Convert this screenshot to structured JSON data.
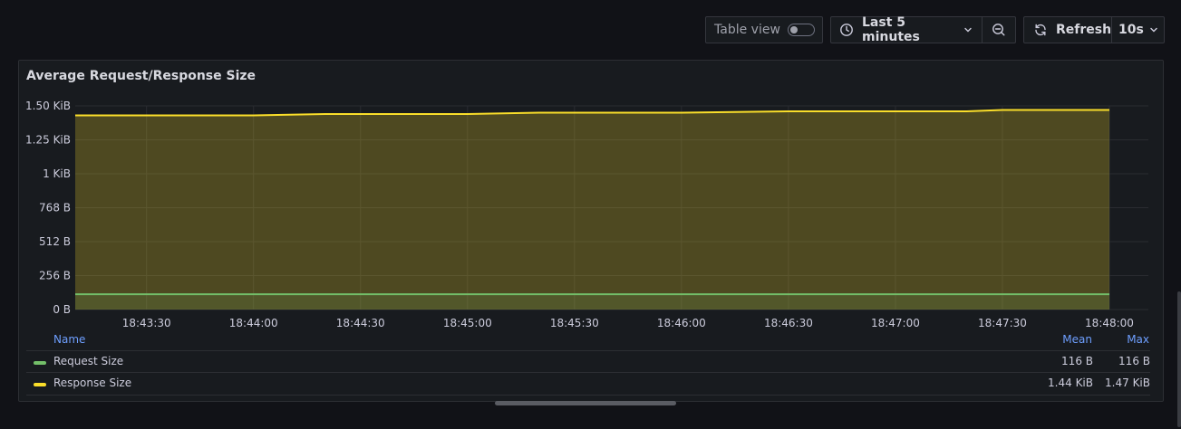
{
  "toolbar": {
    "table_view_label": "Table view",
    "time_range_label": "Last 5 minutes",
    "refresh_label": "Refresh",
    "refresh_interval": "10s"
  },
  "panel": {
    "title": "Average Request/Response Size"
  },
  "chart_data": {
    "type": "area",
    "title": "Average Request/Response Size",
    "xlabel": "",
    "ylabel": "",
    "x_ticks": [
      "18:43:30",
      "18:44:00",
      "18:44:30",
      "18:45:00",
      "18:45:30",
      "18:46:00",
      "18:46:30",
      "18:47:00",
      "18:47:30",
      "18:48:00"
    ],
    "y_ticks": [
      "0 B",
      "256 B",
      "512 B",
      "768 B",
      "1 KiB",
      "1.25 KiB",
      "1.50 KiB"
    ],
    "ylim": [
      0,
      1.5
    ],
    "y_unit": "KiB",
    "grid": true,
    "x": [
      "18:43:10",
      "18:43:30",
      "18:44:00",
      "18:44:20",
      "18:44:30",
      "18:45:00",
      "18:45:20",
      "18:45:30",
      "18:46:00",
      "18:46:30",
      "18:47:00",
      "18:47:20",
      "18:47:30",
      "18:48:00"
    ],
    "series": [
      {
        "name": "Request Size",
        "color": "#73bf69",
        "values": [
          0.113,
          0.113,
          0.113,
          0.113,
          0.113,
          0.113,
          0.113,
          0.113,
          0.113,
          0.113,
          0.113,
          0.113,
          0.113,
          0.113
        ]
      },
      {
        "name": "Response Size",
        "color": "#fade2a",
        "values": [
          1.43,
          1.43,
          1.43,
          1.44,
          1.44,
          1.44,
          1.45,
          1.45,
          1.45,
          1.46,
          1.46,
          1.46,
          1.47,
          1.47
        ]
      }
    ]
  },
  "legend": {
    "headers": {
      "name": "Name",
      "mean": "Mean",
      "max": "Max"
    },
    "rows": [
      {
        "name": "Request Size",
        "color": "#73bf69",
        "mean": "116 B",
        "max": "116 B"
      },
      {
        "name": "Response Size",
        "color": "#fade2a",
        "mean": "1.44 KiB",
        "max": "1.47 KiB"
      }
    ]
  },
  "icons": {
    "clock": "clock-icon",
    "chevron": "chevron-down-icon",
    "zoom_out": "zoom-out-icon",
    "refresh": "refresh-icon"
  }
}
